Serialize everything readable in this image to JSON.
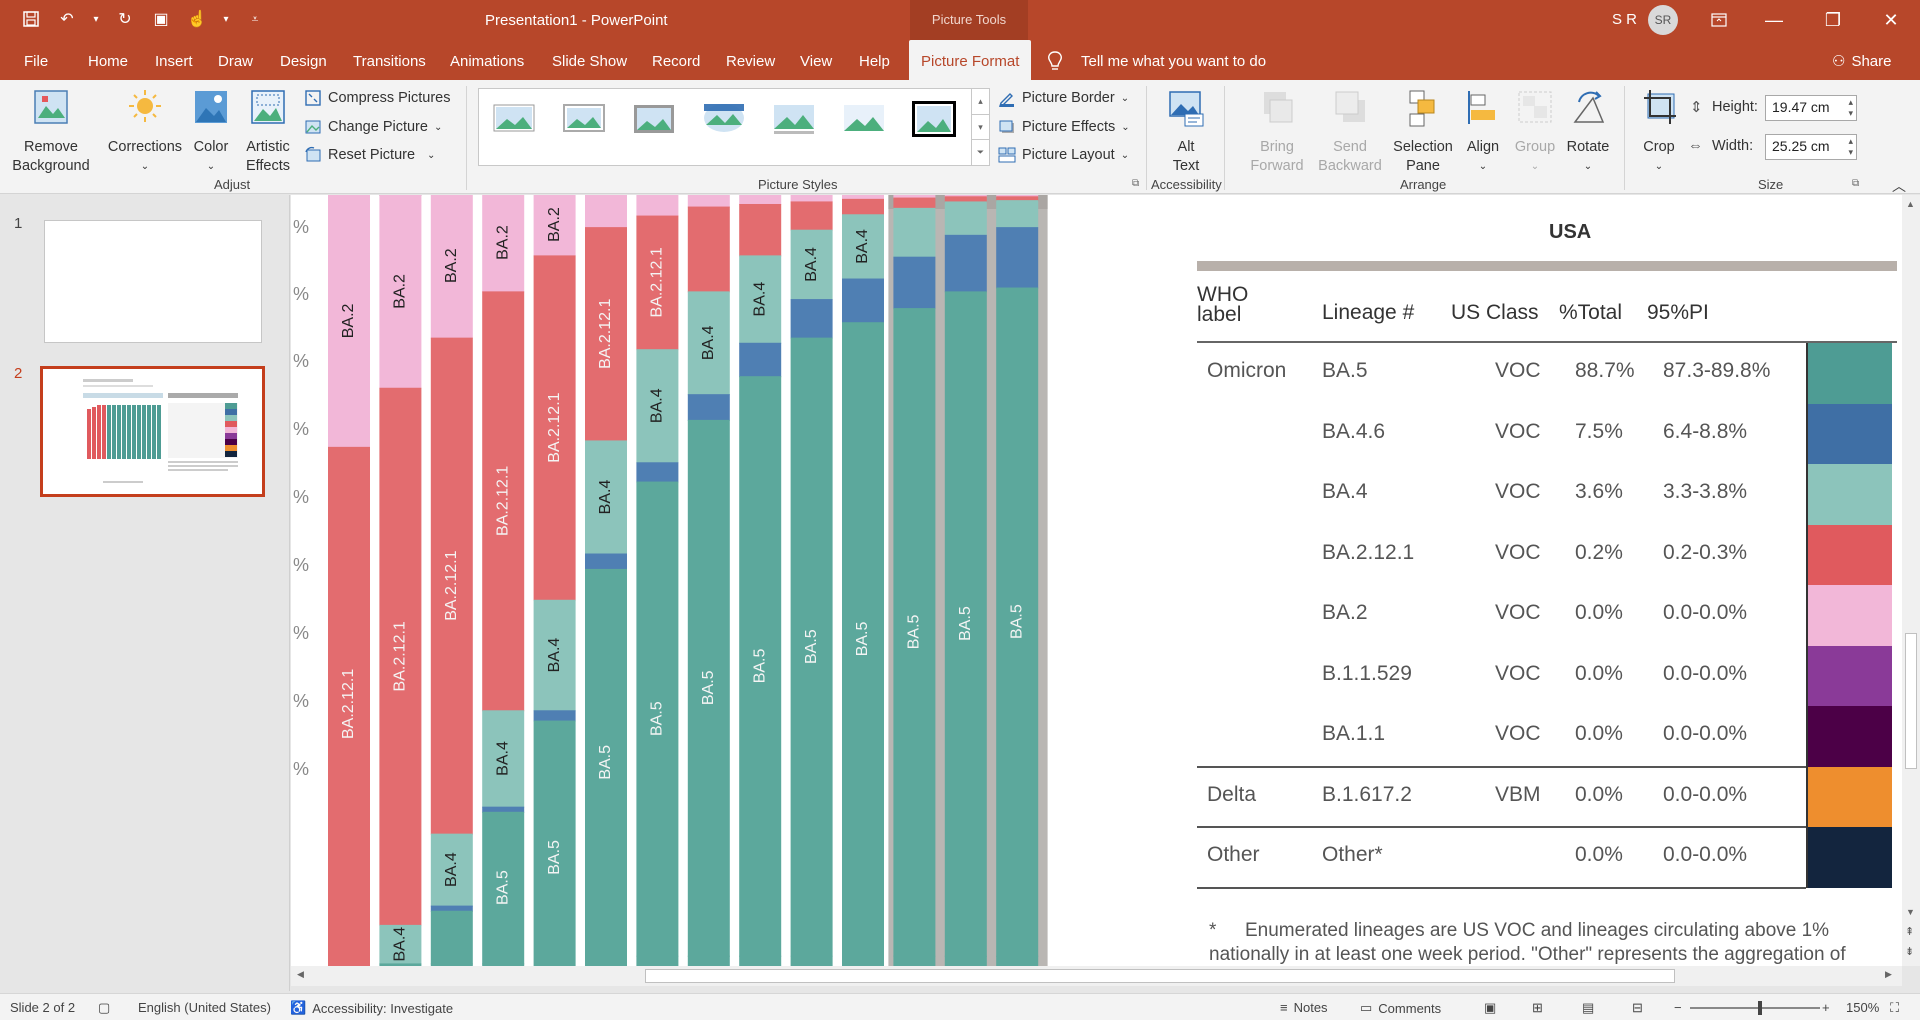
{
  "window": {
    "title": "Presentation1  -  PowerPoint",
    "context_tab": "Picture Tools",
    "user_initials": "S R",
    "avatar_initials": "SR"
  },
  "tabs": [
    "File",
    "Home",
    "Insert",
    "Draw",
    "Design",
    "Transitions",
    "Animations",
    "Slide Show",
    "Record",
    "Review",
    "View",
    "Help",
    "Picture Format"
  ],
  "tell_me": "Tell me what you want to do",
  "share": "Share",
  "ribbon": {
    "adjust": {
      "remove_background": [
        "Remove",
        "Background"
      ],
      "corrections": "Corrections",
      "color": "Color",
      "artistic_effects": [
        "Artistic",
        "Effects"
      ],
      "compress": "Compress Pictures",
      "change": "Change Picture",
      "reset": "Reset Picture",
      "label": "Adjust"
    },
    "styles": {
      "picture_border": "Picture Border",
      "picture_effects": "Picture Effects",
      "picture_layout": "Picture Layout",
      "label": "Picture Styles"
    },
    "accessibility": {
      "alt_text": [
        "Alt",
        "Text"
      ],
      "label": "Accessibility"
    },
    "arrange": {
      "bring_forward": [
        "Bring",
        "Forward"
      ],
      "send_backward": [
        "Send",
        "Backward"
      ],
      "selection_pane": [
        "Selection",
        "Pane"
      ],
      "align": "Align",
      "group": "Group",
      "rotate": "Rotate",
      "label": "Arrange"
    },
    "size": {
      "crop": "Crop",
      "height_label": "Height:",
      "height_value": "19.47 cm",
      "width_label": "Width:",
      "width_value": "25.25 cm",
      "label": "Size"
    }
  },
  "slides": [
    {
      "num": "1"
    },
    {
      "num": "2"
    }
  ],
  "slide_content": {
    "bars": {
      "y_tick_suffix": "%",
      "columns": [
        {
          "labels": [
            "BA.2",
            "BA.2.12.1"
          ]
        },
        {
          "labels": [
            "BA.2",
            "BA.2.12.1",
            "BA.4"
          ]
        },
        {
          "labels": [
            "BA.2",
            "BA.2.12.1",
            "BA.4"
          ]
        },
        {
          "labels": [
            "BA.2",
            "BA.2.12.1",
            "BA.4",
            "BA.5"
          ]
        },
        {
          "labels": [
            "BA.2",
            "BA.2.12.1",
            "BA.4",
            "BA.5"
          ]
        },
        {
          "labels": [
            "BA.2.12.1",
            "BA.4",
            "BA.5"
          ]
        },
        {
          "labels": [
            "BA.2.12.1",
            "BA.4",
            "BA.5"
          ]
        },
        {
          "labels": [
            "BA.4",
            "BA.5"
          ]
        },
        {
          "labels": [
            "BA.4",
            "BA.5"
          ]
        },
        {
          "labels": [
            "BA.4",
            "BA.5"
          ]
        },
        {
          "labels": [
            "BA.4",
            "BA.5"
          ]
        },
        {
          "labels": [
            "BA.5"
          ]
        },
        {
          "labels": [
            "BA.5"
          ]
        },
        {
          "labels": [
            "BA.5"
          ]
        }
      ]
    },
    "table": {
      "region": "USA",
      "headers": [
        "WHO label",
        "Lineage #",
        "US Class",
        "%Total",
        "95%PI"
      ],
      "rows": [
        {
          "who": "Omicron",
          "lineage": "BA.5",
          "class": "VOC",
          "total": "88.7%",
          "pi": "87.3-89.8%",
          "color": "#4e9c94"
        },
        {
          "who": "",
          "lineage": "BA.4.6",
          "class": "VOC",
          "total": "7.5%",
          "pi": "6.4-8.8%",
          "color": "#3f6fa5"
        },
        {
          "who": "",
          "lineage": "BA.4",
          "class": "VOC",
          "total": "3.6%",
          "pi": "3.3-3.8%",
          "color": "#8cc4bb"
        },
        {
          "who": "",
          "lineage": "BA.2.12.1",
          "class": "VOC",
          "total": "0.2%",
          "pi": "0.2-0.3%",
          "color": "#e05a5e"
        },
        {
          "who": "",
          "lineage": "BA.2",
          "class": "VOC",
          "total": "0.0%",
          "pi": "0.0-0.0%",
          "color": "#f2b7d8"
        },
        {
          "who": "",
          "lineage": "B.1.1.529",
          "class": "VOC",
          "total": "0.0%",
          "pi": "0.0-0.0%",
          "color": "#8a3a98"
        },
        {
          "who": "",
          "lineage": "BA.1.1",
          "class": "VOC",
          "total": "0.0%",
          "pi": "0.0-0.0%",
          "color": "#4c0047"
        },
        {
          "who": "Delta",
          "lineage": "B.1.617.2",
          "class": "VBM",
          "total": "0.0%",
          "pi": "0.0-0.0%",
          "color": "#ee8e2e"
        },
        {
          "who": "Other",
          "lineage": "Other*",
          "class": "",
          "total": "0.0%",
          "pi": "0.0-0.0%",
          "color": "#13253e"
        }
      ],
      "footnote_star": "*",
      "footnote_line1": "Enumerated lineages are US VOC and lineages circulating above 1%",
      "footnote_line2": "nationally in at least one week period. \"Other\" represents the aggregation of"
    }
  },
  "status": {
    "slide": "Slide 2 of 2",
    "language": "English (United States)",
    "accessibility": "Accessibility: Investigate",
    "notes": "Notes",
    "comments": "Comments",
    "zoom": "150%"
  }
}
